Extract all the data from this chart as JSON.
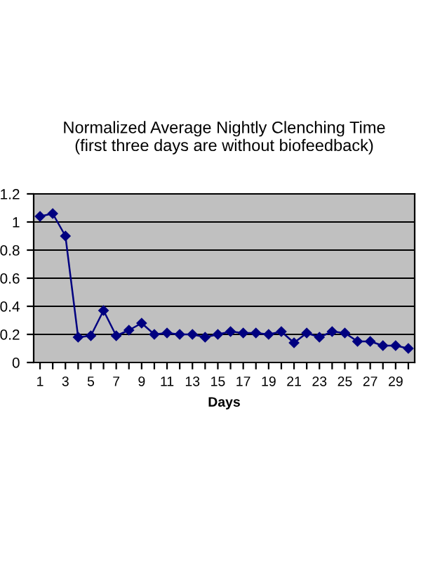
{
  "chart_data": {
    "type": "line",
    "title": "Normalized Average Nightly Clenching Time\n(first three days are without biofeedback)",
    "xlabel": "Days",
    "categories": [
      "1",
      null,
      "3",
      null,
      "5",
      null,
      "7",
      null,
      "9",
      null,
      "11",
      null,
      "13",
      null,
      "15",
      null,
      "17",
      null,
      "19",
      null,
      "21",
      null,
      "23",
      null,
      "25",
      null,
      "27",
      null,
      "29",
      null
    ],
    "series": [
      {
        "color": "#000080",
        "values": [
          1.04,
          1.06,
          0.9,
          0.18,
          0.19,
          0.37,
          0.19,
          0.23,
          0.28,
          0.2,
          0.21,
          0.2,
          0.2,
          0.18,
          0.2,
          0.22,
          0.21,
          0.21,
          0.2,
          0.22,
          0.14,
          0.21,
          0.18,
          0.22,
          0.21,
          0.15,
          0.15,
          0.12,
          0.12,
          0.1
        ]
      }
    ],
    "ylim": [
      0,
      1.2
    ],
    "yticks": [
      0,
      0.2,
      0.4,
      0.6,
      0.8,
      1,
      1.2
    ],
    "grid": "y",
    "marker": "diamond",
    "legend": false
  }
}
